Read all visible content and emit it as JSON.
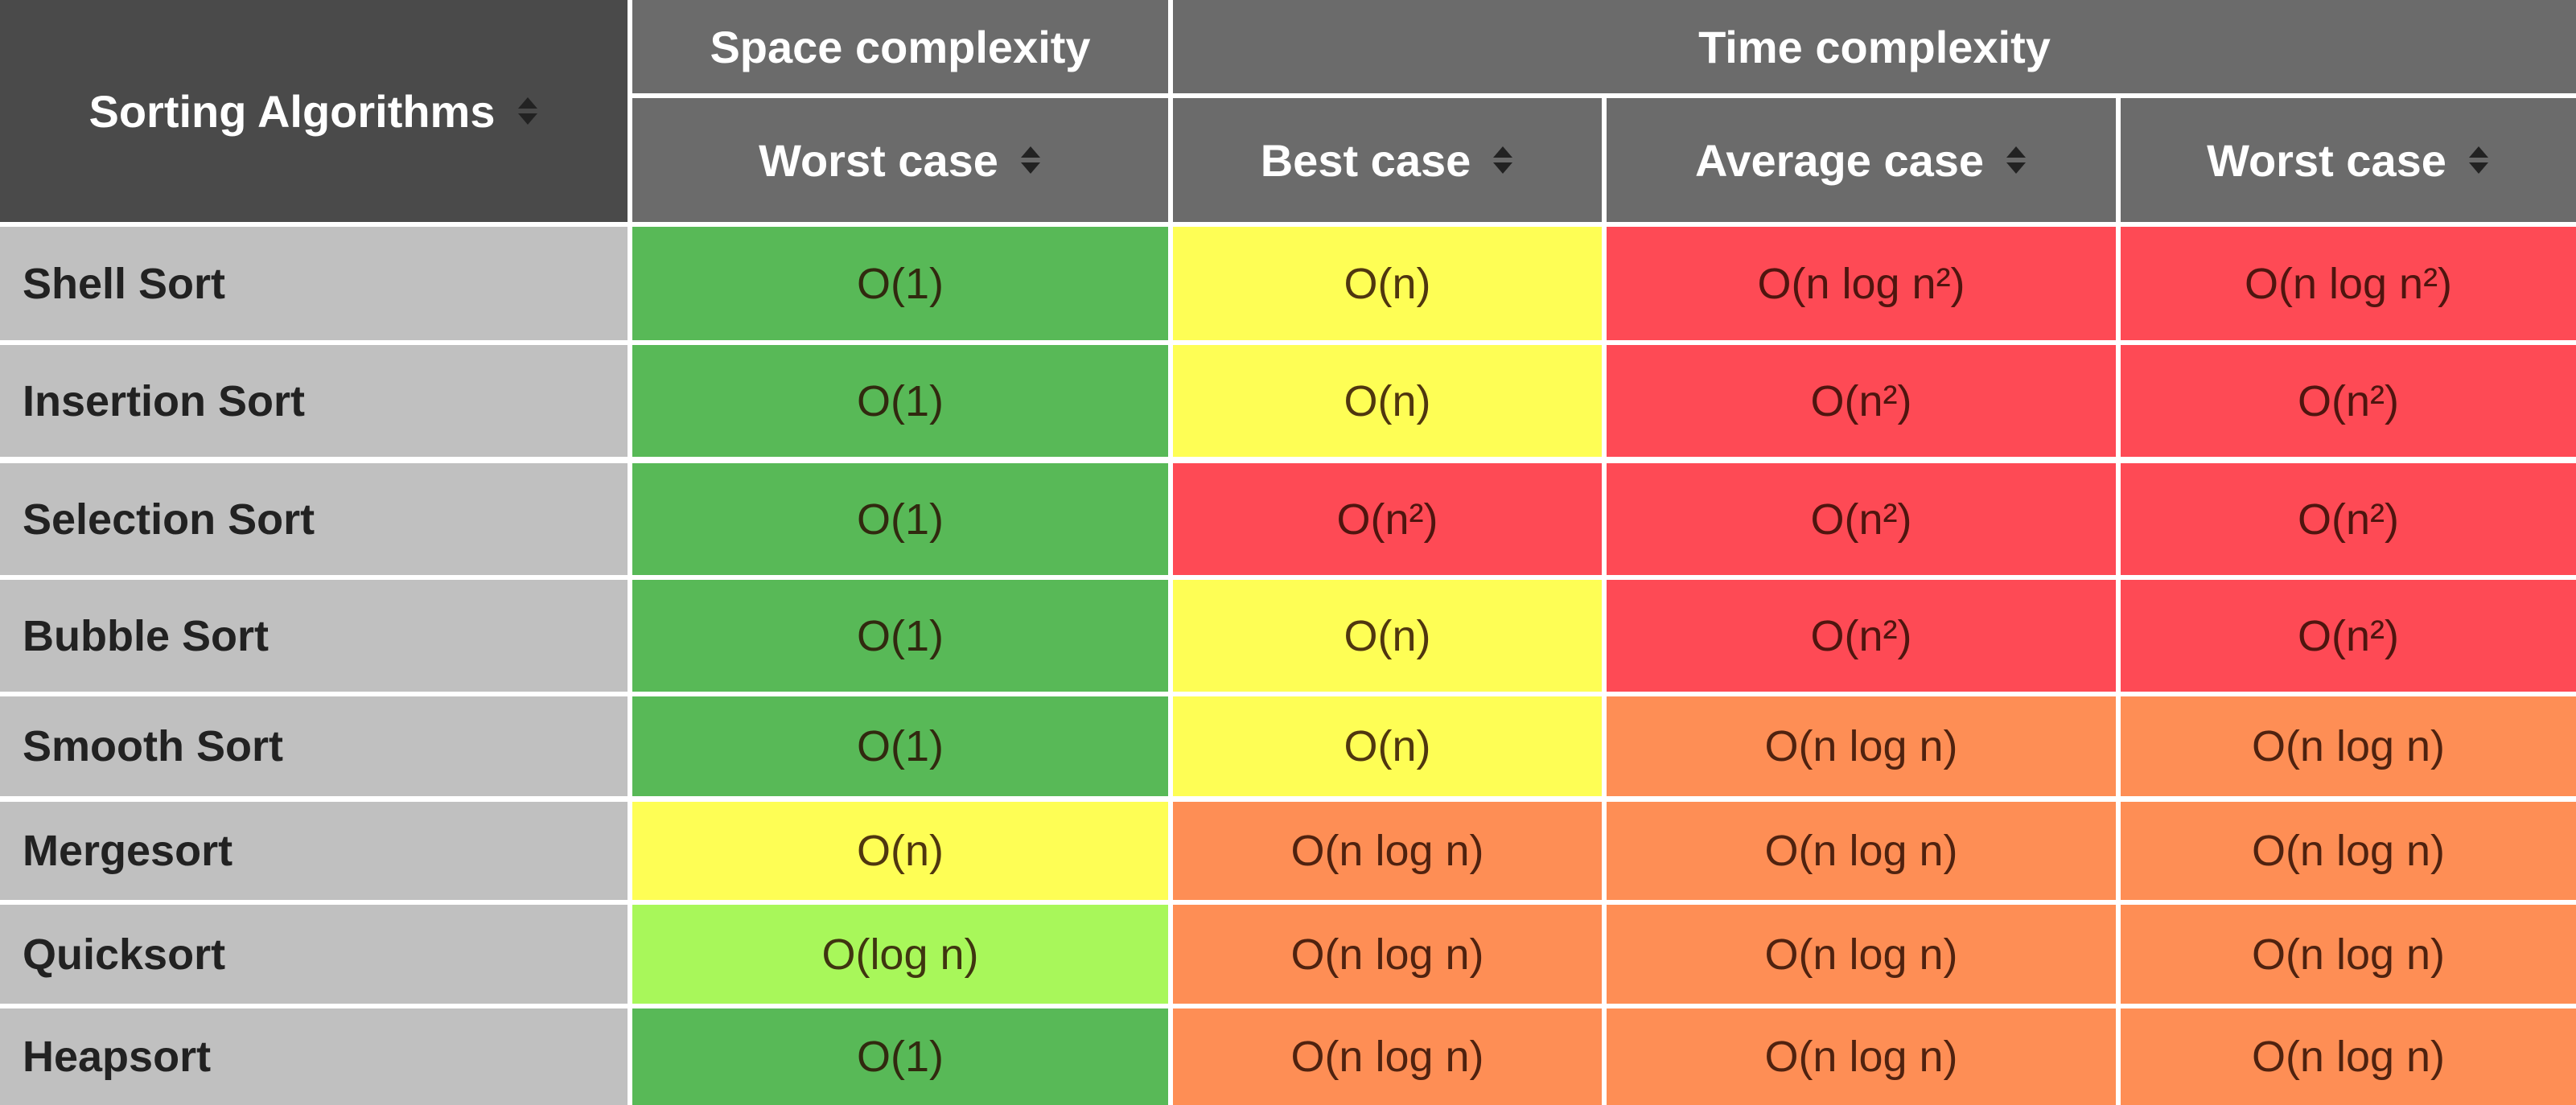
{
  "header": {
    "first": "Sorting Algorithms",
    "groups": [
      "Space complexity",
      "Time complexity"
    ],
    "columns": [
      "Worst case",
      "Best case",
      "Average case",
      "Worst case"
    ]
  },
  "table": {
    "rows": [
      {
        "name": "Shell Sort",
        "cells": [
          {
            "text": "O(1)",
            "color": "#58b957"
          },
          {
            "text": "O(n)",
            "color": "#fefe55"
          },
          {
            "text": "O(n log n²)",
            "color": "#fe4a55"
          },
          {
            "text": "O(n log n²)",
            "color": "#fe4a55"
          }
        ]
      },
      {
        "name": "Insertion Sort",
        "cells": [
          {
            "text": "O(1)",
            "color": "#58b957"
          },
          {
            "text": "O(n)",
            "color": "#fefe55"
          },
          {
            "text": "O(n²)",
            "color": "#fe4a55"
          },
          {
            "text": "O(n²)",
            "color": "#fe4a55"
          }
        ]
      },
      {
        "name": "Selection Sort",
        "cells": [
          {
            "text": "O(1)",
            "color": "#58b957"
          },
          {
            "text": "O(n²)",
            "color": "#fe4a55"
          },
          {
            "text": "O(n²)",
            "color": "#fe4a55"
          },
          {
            "text": "O(n²)",
            "color": "#fe4a55"
          }
        ]
      },
      {
        "name": "Bubble Sort",
        "cells": [
          {
            "text": "O(1)",
            "color": "#58b957"
          },
          {
            "text": "O(n)",
            "color": "#fefe55"
          },
          {
            "text": "O(n²)",
            "color": "#fe4a55"
          },
          {
            "text": "O(n²)",
            "color": "#fe4a55"
          }
        ]
      },
      {
        "name": "Smooth Sort",
        "cells": [
          {
            "text": "O(1)",
            "color": "#58b957"
          },
          {
            "text": "O(n)",
            "color": "#fefe55"
          },
          {
            "text": "O(n log n)",
            "color": "#fe8e55"
          },
          {
            "text": "O(n log n)",
            "color": "#fe8e55"
          }
        ]
      },
      {
        "name": "Mergesort",
        "cells": [
          {
            "text": "O(n)",
            "color": "#fefe55"
          },
          {
            "text": "O(n log n)",
            "color": "#fe8e55"
          },
          {
            "text": "O(n log n)",
            "color": "#fe8e55"
          },
          {
            "text": "O(n log n)",
            "color": "#fe8e55"
          }
        ]
      },
      {
        "name": "Quicksort",
        "cells": [
          {
            "text": "O(log n)",
            "color": "#a8f75a"
          },
          {
            "text": "O(n log n)",
            "color": "#fe8e55"
          },
          {
            "text": "O(n log n)",
            "color": "#fe8e55"
          },
          {
            "text": "O(n log n)",
            "color": "#fe8e55"
          }
        ]
      },
      {
        "name": "Heapsort",
        "cells": [
          {
            "text": "O(1)",
            "color": "#58b957"
          },
          {
            "text": "O(n log n)",
            "color": "#fe8e55"
          },
          {
            "text": "O(n log n)",
            "color": "#fe8e55"
          },
          {
            "text": "O(n log n)",
            "color": "#fe8e55"
          }
        ]
      }
    ]
  }
}
